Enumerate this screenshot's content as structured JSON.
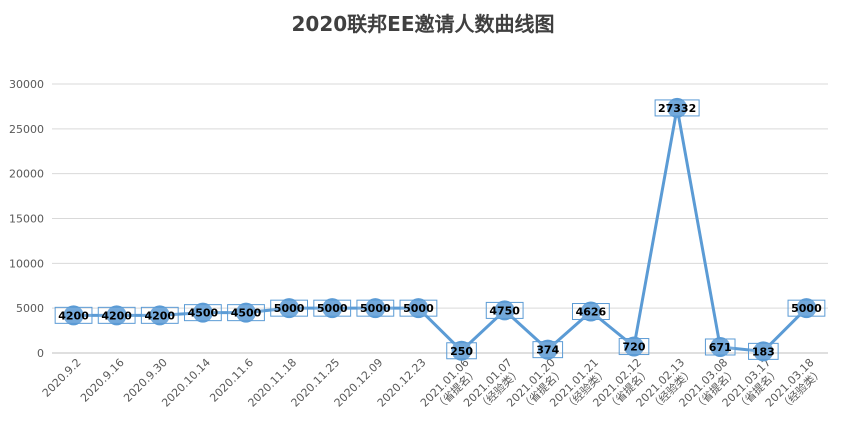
{
  "chart_data": {
    "type": "line",
    "title": "2020联邦EE邀请人数曲线图",
    "xlabel": "",
    "ylabel": "",
    "ylim": [
      0,
      30000
    ],
    "yticks": [
      0,
      5000,
      10000,
      15000,
      20000,
      25000,
      30000
    ],
    "grid": true,
    "legend": "none",
    "categories": [
      "2020.9.2",
      "2020.9.16",
      "2020.9.30",
      "2020.10.14",
      "2020.11.6",
      "2020.11.18",
      "2020.11.25",
      "2020.12.09",
      "2020.12.23",
      "2021.01.06（省提名）",
      "2021.01.07（经验类）",
      "2021.01.20（省提名）",
      "2021.01.21（经验类）",
      "2021.02.12（省提名）",
      "2021.02.13（经验类）",
      "2021.03.08（省提名）",
      "2021.03.17（省提名）",
      "2021.03.18（经验类）"
    ],
    "series": [
      {
        "values": [
          4200,
          4200,
          4200,
          4500,
          4500,
          5000,
          5000,
          5000,
          5000,
          250,
          4750,
          374,
          4626,
          720,
          27332,
          671,
          183,
          5000
        ]
      }
    ],
    "colors": {
      "line": "#5B9BD5",
      "marker": "#5B9BD5",
      "label_box": "#5B9BD5",
      "grid": "#D9D9D9",
      "axis": "#BFBFBF"
    }
  }
}
